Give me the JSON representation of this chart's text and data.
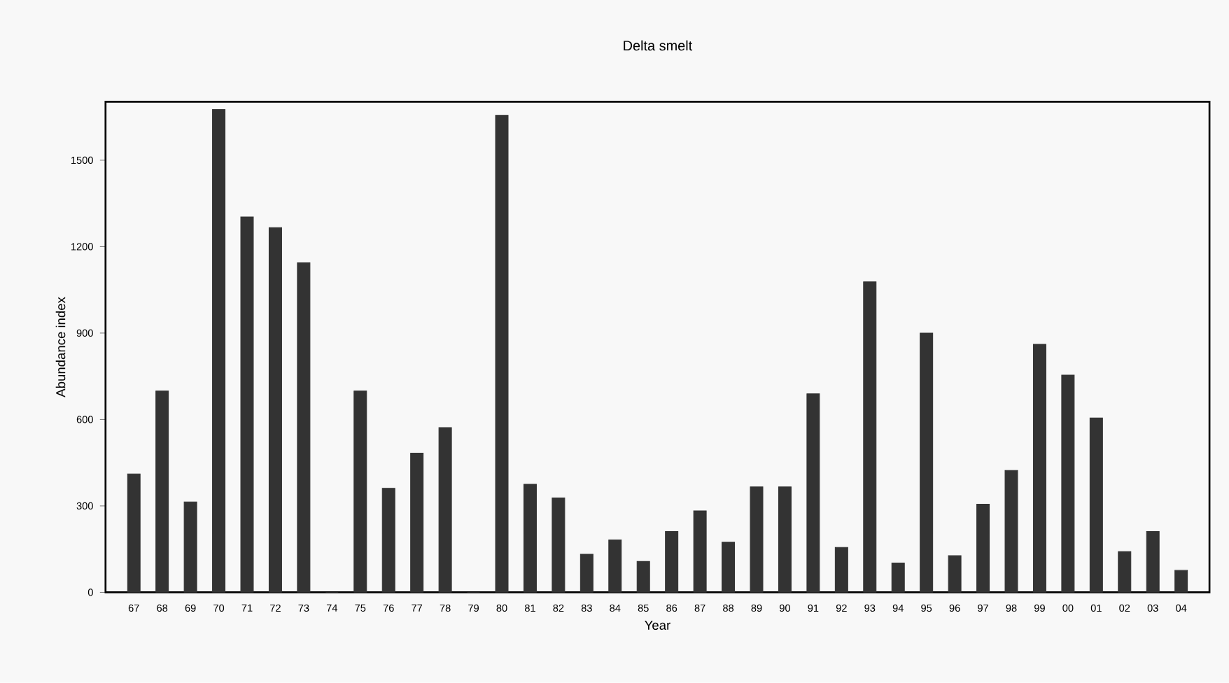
{
  "chart_data": {
    "type": "bar",
    "title": "Delta smelt",
    "xlabel": "Year",
    "ylabel": "Abundance index",
    "categories": [
      "67",
      "68",
      "69",
      "70",
      "71",
      "72",
      "73",
      "74",
      "75",
      "76",
      "77",
      "78",
      "79",
      "80",
      "81",
      "82",
      "83",
      "84",
      "85",
      "86",
      "87",
      "88",
      "89",
      "90",
      "91",
      "92",
      "93",
      "94",
      "95",
      "96",
      "97",
      "98",
      "99",
      "00",
      "01",
      "02",
      "03",
      "04"
    ],
    "values": [
      411,
      699,
      314,
      1676,
      1303,
      1266,
      1144,
      0,
      699,
      361,
      483,
      572,
      0,
      1656,
      375,
      328,
      132,
      182,
      107,
      211,
      283,
      174,
      366,
      366,
      689,
      156,
      1078,
      102,
      900,
      127,
      306,
      423,
      861,
      754,
      605,
      141,
      211,
      76
    ],
    "color": "#333333",
    "ylim": [
      0,
      1703
    ],
    "yticks": [
      0,
      300,
      600,
      900,
      1200,
      1500
    ],
    "grid": false
  }
}
